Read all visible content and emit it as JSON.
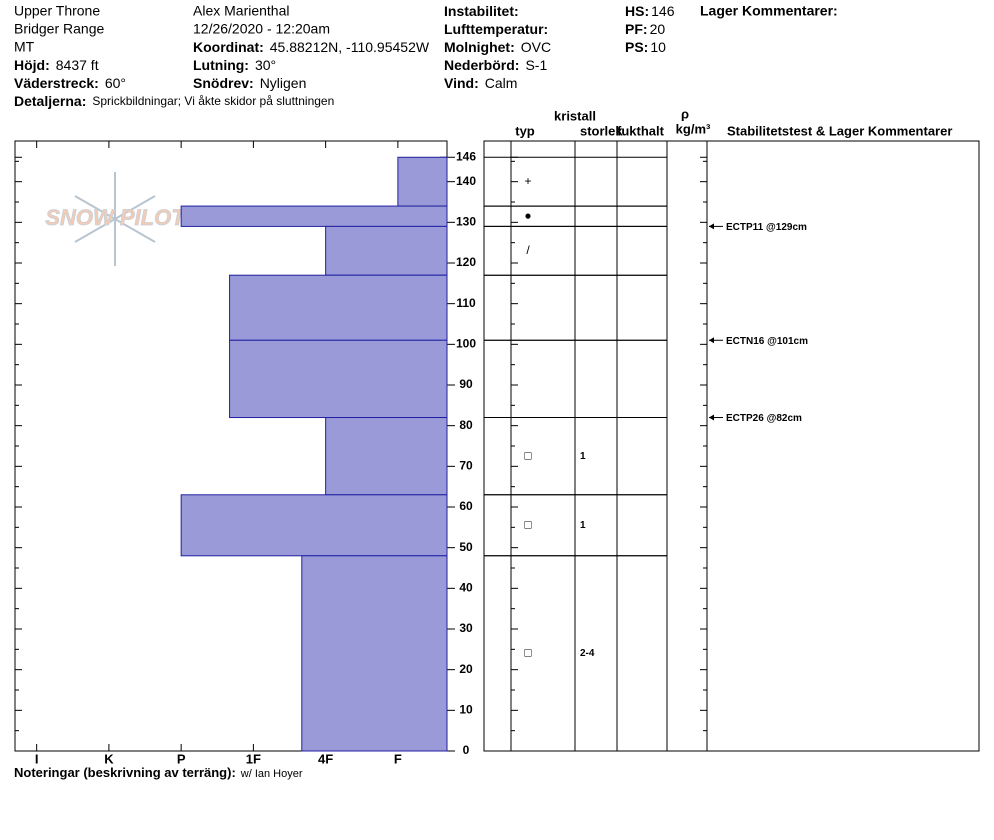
{
  "header": {
    "location": [
      "Upper Throne",
      "Bridger Range",
      "MT"
    ],
    "observer": "Alex Marienthal",
    "datetime": "12/26/2020 - 12:20am",
    "fields": [
      {
        "label": "Höjd:",
        "value": "8437 ft"
      },
      {
        "label": "Väderstreck:",
        "value": "60°"
      },
      {
        "label": "Detaljerna:",
        "value": "Sprickbildningar;  Vi åkte skidor på sluttningen"
      },
      {
        "label": "Koordinat:",
        "value": "45.88212N, -110.95452W"
      },
      {
        "label": "Lutning:",
        "value": "30°"
      },
      {
        "label": "Snödrev:",
        "value": "Nyligen"
      },
      {
        "label": "Instabilitet:"
      },
      {
        "label": "Lufttemperatur:"
      },
      {
        "label": "Molnighet:",
        "value": "OVC"
      },
      {
        "label": "Nederbörd:",
        "value": "S-1"
      },
      {
        "label": "Vind:",
        "value": "Calm"
      },
      {
        "label": "HS:",
        "value": 146
      },
      {
        "label": "PF:",
        "value": 20
      },
      {
        "label": "PS:",
        "value": 10
      }
    ],
    "layer_comments": "Lager Kommentarer:",
    "logo": "SNOW PILOT"
  },
  "chart_data": {
    "type": "bar",
    "color": "#9a9ad8",
    "edge_color": "#2020a0",
    "xlim": [
      0.7,
      6.68
    ],
    "xticks": [
      {
        "value": 1,
        "label": "I"
      },
      {
        "value": 2,
        "label": "K"
      },
      {
        "value": 3,
        "label": "P"
      },
      {
        "value": 4,
        "label": "1F"
      },
      {
        "value": 5,
        "label": "4F"
      },
      {
        "value": 6,
        "label": "F"
      }
    ],
    "ylim": [
      0,
      150
    ],
    "yticks": [
      0,
      10,
      20,
      30,
      40,
      50,
      60,
      70,
      80,
      90,
      100,
      110,
      120,
      130,
      140,
      146
    ],
    "yminorticks": [
      5,
      15,
      25,
      35,
      45,
      55,
      65,
      75,
      85,
      95,
      105,
      115,
      125,
      135,
      145
    ],
    "layers": {
      "top": [
        146,
        134,
        129,
        117,
        101,
        82,
        63,
        48
      ],
      "bottom": [
        134,
        129,
        117,
        101,
        82,
        63,
        48,
        0
      ],
      "hardness": [
        6,
        3,
        5,
        3.67,
        3.67,
        5,
        3,
        4.67
      ],
      "crystal_type": [
        "+",
        "●",
        "/",
        null,
        null,
        "□",
        "□",
        "□"
      ],
      "crystal_size": [
        null,
        null,
        null,
        null,
        null,
        "1",
        "1",
        "2-4"
      ]
    },
    "columns": {
      "type": "typ",
      "crystal": "kristall",
      "size": "storlek",
      "moisture": "fukthalt",
      "rho": "ρ",
      "density_unit": "kg/m³",
      "comments": "Stabilitetstest & Lager Kommentarer"
    },
    "tests": [
      {
        "depth": 129,
        "label": "ECTP11 @129cm"
      },
      {
        "depth": 101,
        "label": "ECTN16 @101cm"
      },
      {
        "depth": 82,
        "label": "ECTP26 @82cm"
      }
    ],
    "notes": {
      "label": "Noteringar (beskrivning av terräng):",
      "value": "w/ Ian Hoyer"
    }
  }
}
